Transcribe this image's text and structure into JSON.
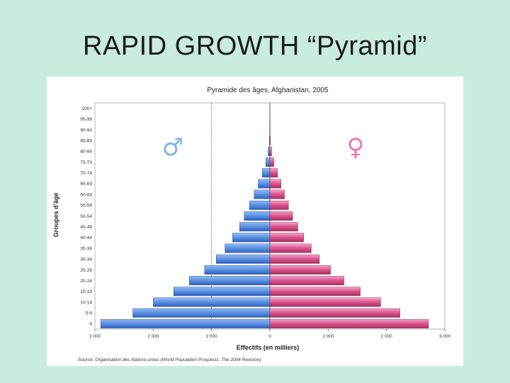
{
  "slide": {
    "title": "RAPID GROWTH   “Pyramid”"
  },
  "chart_data": {
    "type": "bar",
    "orientation": "horizontal-population-pyramid",
    "title": "Pyramide des âges, Afghanistan, 2005",
    "xlabel": "Effectifs (en milliers)",
    "ylabel": "Groupes d'âge",
    "source": "Source: Organisation des Nations unies (World Population Prospects: The 2004 Revision)",
    "categories": [
      "0-4",
      "5-9",
      "10-14",
      "15-19",
      "20-24",
      "25-29",
      "30-34",
      "35-39",
      "40-44",
      "45-49",
      "50-54",
      "55-59",
      "60-64",
      "65-69",
      "70-74",
      "75-79",
      "80-84",
      "85-89",
      "90-94",
      "95-99",
      "100+"
    ],
    "y_tick_labels": [
      "4",
      "5-9",
      "10-14",
      "15-19",
      "20-24",
      "25-29",
      "30-34",
      "35-39",
      "40-44",
      "45-49",
      "50-54",
      "55-59",
      "60-64",
      "65-69",
      "70-74",
      "75-79",
      "80-84",
      "85-89",
      "90-94",
      "95-99",
      "100+"
    ],
    "series": [
      {
        "name": "♂",
        "side": "left",
        "color": "#5a8fe0",
        "values": [
          2900,
          2350,
          2000,
          1650,
          1380,
          1120,
          920,
          770,
          640,
          520,
          440,
          350,
          270,
          200,
          130,
          70,
          30,
          10,
          4,
          1,
          0
        ]
      },
      {
        "name": "♀",
        "side": "right",
        "color": "#d9538a",
        "values": [
          2720,
          2230,
          1900,
          1550,
          1270,
          1040,
          850,
          710,
          580,
          480,
          390,
          320,
          250,
          190,
          130,
          70,
          30,
          10,
          4,
          1,
          0
        ]
      }
    ],
    "x_ticks": [
      -3000,
      -2000,
      -1000,
      0,
      1000,
      2000,
      3000
    ],
    "x_tick_labels": [
      "3 000",
      "2 000",
      "1 000",
      "0",
      "1 000",
      "2 000",
      "3 000"
    ],
    "xlim": [
      -3000,
      3000
    ],
    "reference_line_x": -1000,
    "male_symbol": "♂",
    "female_symbol": "♀",
    "male_symbol_color": "#7fb4ea",
    "female_symbol_color": "#e878b8"
  }
}
